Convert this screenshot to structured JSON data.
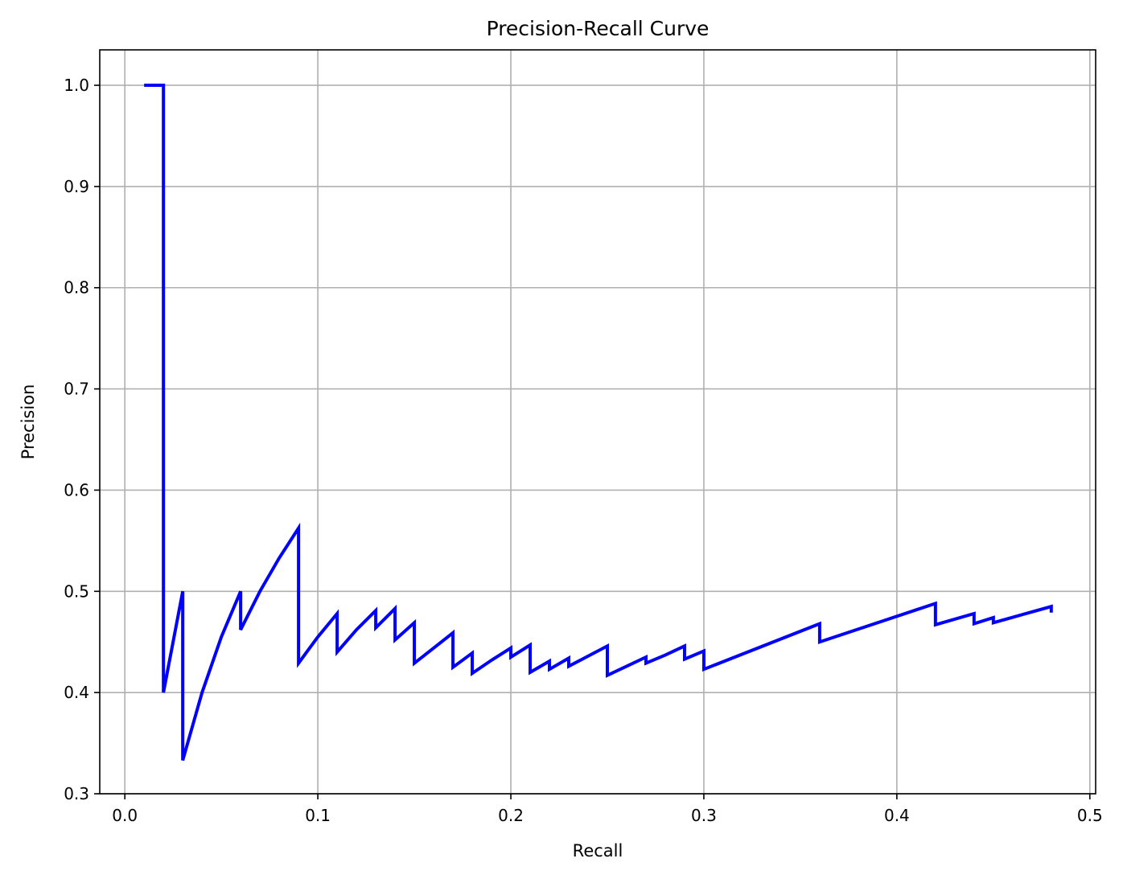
{
  "chart_data": {
    "type": "line",
    "title": "Precision-Recall Curve",
    "xlabel": "Recall",
    "ylabel": "Precision",
    "xlim": [
      -0.013,
      0.503
    ],
    "ylim": [
      0.3,
      1.035
    ],
    "xticks": [
      0.0,
      0.1,
      0.2,
      0.3,
      0.4,
      0.5
    ],
    "xtick_labels": [
      "0.0",
      "0.1",
      "0.2",
      "0.3",
      "0.4",
      "0.5"
    ],
    "yticks": [
      0.3,
      0.4,
      0.5,
      0.6,
      0.7,
      0.8,
      0.9,
      1.0
    ],
    "ytick_labels": [
      "0.3",
      "0.4",
      "0.5",
      "0.6",
      "0.7",
      "0.8",
      "0.9",
      "1.0"
    ],
    "grid": true,
    "series": [
      {
        "color": "#0000ff",
        "x": [
          0.01,
          0.02,
          0.02,
          0.03,
          0.03,
          0.04,
          0.05,
          0.06,
          0.06,
          0.07,
          0.08,
          0.09,
          0.09,
          0.1,
          0.11,
          0.11,
          0.12,
          0.13,
          0.13,
          0.14,
          0.14,
          0.15,
          0.15,
          0.16,
          0.17,
          0.17,
          0.18,
          0.18,
          0.19,
          0.2,
          0.2,
          0.21,
          0.21,
          0.22,
          0.22,
          0.23,
          0.23,
          0.24,
          0.25,
          0.25,
          0.26,
          0.27,
          0.27,
          0.28,
          0.29,
          0.29,
          0.3,
          0.3,
          0.36,
          0.36,
          0.42,
          0.42,
          0.44,
          0.44,
          0.45,
          0.45,
          0.48,
          0.48
        ],
        "y": [
          1.0,
          1.0,
          0.4,
          0.5,
          0.333,
          0.4,
          0.455,
          0.5,
          0.462,
          0.5,
          0.533,
          0.5625,
          0.429,
          0.455,
          0.478,
          0.44,
          0.462,
          0.481,
          0.464,
          0.483,
          0.452,
          0.469,
          0.429,
          0.444,
          0.459,
          0.425,
          0.439,
          0.419,
          0.432,
          0.444,
          0.435,
          0.447,
          0.42,
          0.431,
          0.423,
          0.434,
          0.426,
          0.436,
          0.446,
          0.417,
          0.426,
          0.435,
          0.429,
          0.437,
          0.446,
          0.433,
          0.441,
          0.423,
          0.468,
          0.45,
          0.488,
          0.467,
          0.478,
          0.468,
          0.474,
          0.469,
          0.485,
          0.479
        ]
      }
    ]
  }
}
